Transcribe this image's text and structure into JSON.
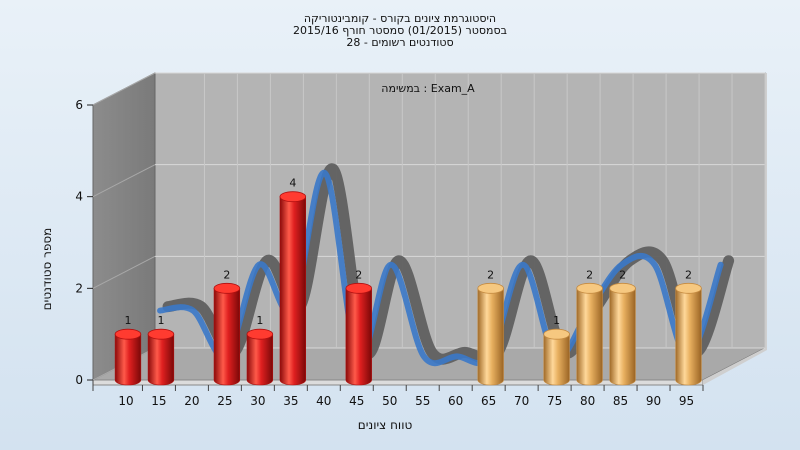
{
  "chart_data": {
    "type": "bar",
    "title_lines": [
      "היסטוגרמת ציונים בקורס - קומבינטוריקה",
      "בסמסטר  (01/2015)  סמסטר חורף 2015/16",
      "סטודנטים רשומים - 28"
    ],
    "annotation": "במשימה : Exam_A",
    "xlabel": "טווח ציונים",
    "ylabel": "מספר סטודנטים",
    "ylim": [
      0,
      6
    ],
    "y_ticks": [
      "0",
      "2",
      "4",
      "6"
    ],
    "categories": [
      "10",
      "15",
      "20",
      "25",
      "30",
      "35",
      "40",
      "45",
      "50",
      "55",
      "60",
      "65",
      "70",
      "75",
      "80",
      "85",
      "90",
      "95"
    ],
    "bars": [
      {
        "x": "10",
        "value": 1,
        "label": "1",
        "color": "red"
      },
      {
        "x": "15",
        "value": 1,
        "label": "1",
        "color": "red"
      },
      {
        "x": "25",
        "value": 2,
        "label": "2",
        "color": "red"
      },
      {
        "x": "30",
        "value": 1,
        "label": "1",
        "color": "red"
      },
      {
        "x": "35",
        "value": 4,
        "label": "4",
        "color": "red"
      },
      {
        "x": "45",
        "value": 2,
        "label": "2",
        "color": "red"
      },
      {
        "x": "65",
        "value": 2,
        "label": "2",
        "color": "gold"
      },
      {
        "x": "75",
        "value": 1,
        "label": "1",
        "color": "gold"
      },
      {
        "x": "80",
        "value": 2,
        "label": "2",
        "color": "gold"
      },
      {
        "x": "85",
        "value": 2,
        "label": "2",
        "color": "gold"
      },
      {
        "x": "95",
        "value": 2,
        "label": "2",
        "color": "gold"
      }
    ],
    "grid": true,
    "colors": {
      "red_bar": "#e02020",
      "gold_bar": "#e8b060",
      "curve_front": "#3a78c8",
      "curve_back": "#606060",
      "wall": "#8a8a8a",
      "floor": "#a9a9a9",
      "back_wall": "#b4b4b4"
    }
  }
}
